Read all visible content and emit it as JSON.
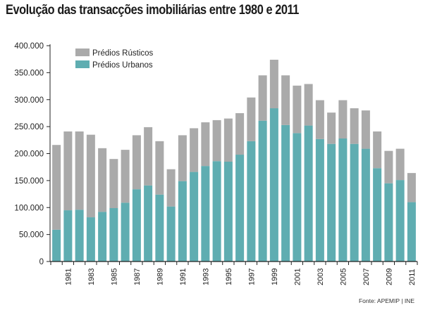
{
  "title": "Evolução das transacções imobiliárias entre 1980 e 2011",
  "source": "Fonte: APEMIP | INE",
  "colors": {
    "rusticos": "#aaaaaa",
    "urbanos": "#5fadb1",
    "axis": "#222222",
    "text": "#222222"
  },
  "chart_data": {
    "type": "bar",
    "stacked": true,
    "title": "Evolução das transacções imobiliárias entre 1980 e 2011",
    "xlabel": "",
    "ylabel": "",
    "ylim": [
      0,
      400000
    ],
    "yticks": [
      0,
      50000,
      100000,
      150000,
      200000,
      250000,
      300000,
      350000,
      400000
    ],
    "ytick_labels": [
      "0",
      "50.000",
      "100.000",
      "150.000",
      "200.000",
      "250.000",
      "300.000",
      "350.000",
      "400.000"
    ],
    "legend_position": "top-left",
    "grid": false,
    "categories": [
      "1980",
      "1981",
      "1982",
      "1983",
      "1984",
      "1985",
      "1986",
      "1987",
      "1988",
      "1989",
      "1990",
      "1991",
      "1992",
      "1993",
      "1994",
      "1995",
      "1996",
      "1997",
      "1998",
      "1999",
      "2000",
      "2001",
      "2002",
      "2003",
      "2004",
      "2005",
      "2006",
      "2007",
      "2008",
      "2009",
      "2010",
      "2011"
    ],
    "xtick_labels": [
      "1981",
      "1983",
      "1985",
      "1987",
      "1989",
      "1991",
      "1993",
      "1995",
      "1997",
      "1999",
      "2001",
      "2003",
      "2005",
      "2007",
      "2009",
      "2011"
    ],
    "series": [
      {
        "name": "Prédios Urbanos",
        "color": "#5fadb1",
        "values": [
          59000,
          95000,
          96000,
          82000,
          92000,
          99000,
          109000,
          134000,
          141000,
          124000,
          102000,
          149000,
          166000,
          177000,
          186000,
          185000,
          198000,
          223000,
          261000,
          284000,
          253000,
          238000,
          252000,
          227000,
          218000,
          228000,
          218000,
          209000,
          173000,
          145000,
          151000,
          110000
        ]
      },
      {
        "name": "Prédios Rústicos",
        "color": "#aaaaaa",
        "values": [
          157000,
          146000,
          145000,
          153000,
          118000,
          91000,
          98000,
          100000,
          108000,
          99000,
          69000,
          85000,
          81000,
          81000,
          76000,
          80000,
          77000,
          81000,
          84000,
          90000,
          92000,
          88000,
          77000,
          72000,
          58000,
          71000,
          66000,
          71000,
          68000,
          60000,
          58000,
          54000
        ]
      }
    ],
    "totals": [
      216000,
      241000,
      241000,
      235000,
      210000,
      190000,
      207000,
      234000,
      249000,
      223000,
      171000,
      234000,
      247000,
      258000,
      262000,
      265000,
      275000,
      304000,
      345000,
      374000,
      345000,
      326000,
      329000,
      299000,
      276000,
      299000,
      284000,
      280000,
      241000,
      205000,
      209000,
      164000
    ]
  }
}
